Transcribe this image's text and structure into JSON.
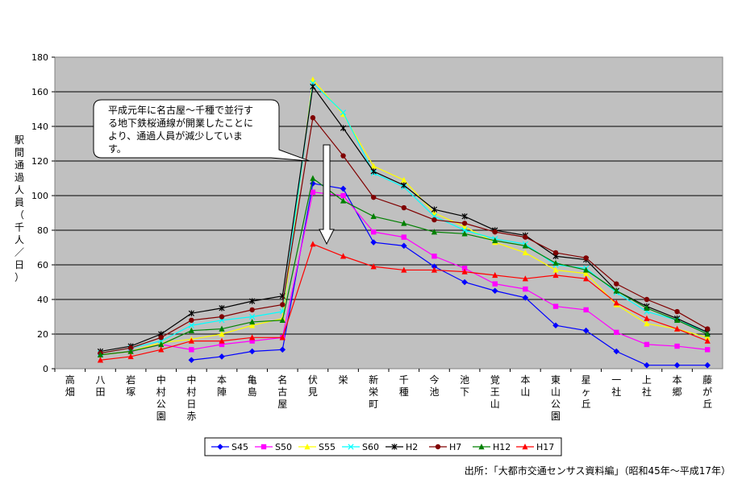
{
  "chart_data": {
    "type": "line",
    "ylabel": "駅間通過人員（千人／日）",
    "ylim": [
      0,
      180
    ],
    "yticks": [
      0,
      20,
      40,
      60,
      80,
      100,
      120,
      140,
      160,
      180
    ],
    "grid": true,
    "plot_background": "#c0c0c0",
    "legend_position": "bottom",
    "categories": [
      "高畑",
      "八田",
      "岩塚",
      "中村公園",
      "中村日赤",
      "本陣",
      "亀島",
      "名古屋",
      "伏見",
      "栄",
      "新栄町",
      "千種",
      "今池",
      "池下",
      "覚王山",
      "本山",
      "東山公園",
      "星ヶ丘",
      "一社",
      "上社",
      "本郷",
      "藤が丘"
    ],
    "series": [
      {
        "name": "S45",
        "color": "#0000ff",
        "marker": "diamond",
        "values": [
          null,
          null,
          null,
          null,
          5,
          7,
          10,
          11,
          107,
          104,
          73,
          71,
          59,
          50,
          45,
          41,
          25,
          22,
          10,
          2,
          2,
          2
        ]
      },
      {
        "name": "S50",
        "color": "#ff00ff",
        "marker": "square",
        "values": [
          null,
          8,
          10,
          14,
          11,
          14,
          16,
          18,
          102,
          100,
          79,
          76,
          65,
          58,
          49,
          46,
          36,
          34,
          21,
          14,
          13,
          11
        ]
      },
      {
        "name": "S55",
        "color": "#ffff00",
        "marker": "triangle",
        "values": [
          null,
          8,
          10,
          15,
          17,
          20,
          25,
          29,
          167,
          147,
          117,
          109,
          90,
          82,
          73,
          67,
          57,
          55,
          37,
          26,
          23,
          18
        ]
      },
      {
        "name": "S60",
        "color": "#00ffff",
        "marker": "x",
        "values": [
          null,
          9,
          12,
          16,
          25,
          28,
          30,
          33,
          165,
          148,
          113,
          105,
          88,
          80,
          75,
          72,
          60,
          58,
          44,
          33,
          28,
          21
        ]
      },
      {
        "name": "H2",
        "color": "#000000",
        "marker": "star",
        "values": [
          null,
          10,
          13,
          20,
          32,
          35,
          39,
          42,
          163,
          139,
          114,
          106,
          92,
          88,
          80,
          77,
          65,
          63,
          45,
          36,
          29,
          21
        ]
      },
      {
        "name": "H7",
        "color": "#800000",
        "marker": "circle",
        "values": [
          null,
          9,
          12,
          18,
          28,
          30,
          34,
          37,
          145,
          123,
          99,
          93,
          86,
          84,
          79,
          76,
          67,
          64,
          49,
          40,
          33,
          23
        ]
      },
      {
        "name": "H12",
        "color": "#008000",
        "marker": "triangle",
        "values": [
          null,
          8,
          10,
          14,
          22,
          23,
          27,
          28,
          110,
          97,
          88,
          84,
          79,
          78,
          74,
          71,
          61,
          57,
          45,
          35,
          28,
          20
        ]
      },
      {
        "name": "H17",
        "color": "#ff0000",
        "marker": "triangle",
        "values": [
          null,
          5,
          7,
          11,
          16,
          16,
          18,
          18,
          72,
          65,
          59,
          57,
          57,
          56,
          54,
          52,
          54,
          52,
          38,
          29,
          23,
          16
        ]
      }
    ],
    "annotation": "平成元年に名古屋～千種で並行する地下鉄桜通線が開業したことにより、通過人員が減少しています。",
    "annotation_lines": [
      "平成元年に名古屋～千種で並行す",
      "る地下鉄桜通線が開業したことに",
      "より、通過人員が減少していま",
      "す。"
    ]
  },
  "source_note": "出所：「大都市交通センサス資料編」（昭和45年～平成17年）"
}
